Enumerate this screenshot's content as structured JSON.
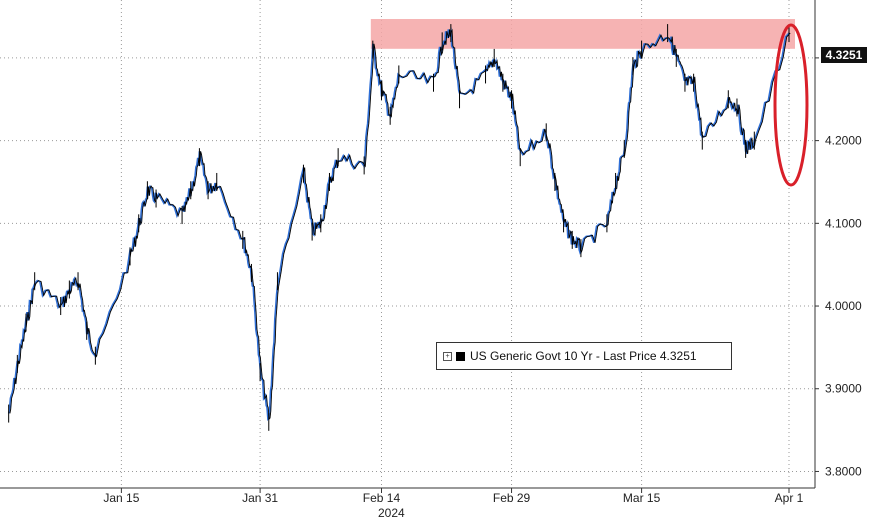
{
  "chart_data": {
    "type": "candlestick-line",
    "title": "",
    "xlabel": "",
    "ylabel": "",
    "ylim": [
      3.78,
      4.37
    ],
    "y_ticks": [
      "4.3000",
      "4.2000",
      "4.1000",
      "4.0000",
      "3.9000",
      "3.8000"
    ],
    "y_tick_values": [
      4.3,
      4.2,
      4.1,
      4.0,
      3.9,
      3.8
    ],
    "x_ticks": [
      "Jan 15",
      "Jan 31",
      "Feb 14",
      "Feb 29",
      "Mar 15",
      "Apr 1"
    ],
    "x_year_label": "2024",
    "last_price_label": "4.3251",
    "last_price": 4.3251,
    "grid": true,
    "legend_placement": "center-right",
    "series": [
      {
        "name": "US Generic Govt 10 Yr - Last Price 4.3251",
        "points": [
          [
            "2024-01-02",
            3.87
          ],
          [
            "2024-01-03",
            3.93
          ],
          [
            "2024-01-04",
            3.98
          ],
          [
            "2024-01-05",
            4.03
          ],
          [
            "2024-01-08",
            4.0
          ],
          [
            "2024-01-09",
            4.02
          ],
          [
            "2024-01-10",
            4.03
          ],
          [
            "2024-01-11",
            3.97
          ],
          [
            "2024-01-12",
            3.94
          ],
          [
            "2024-01-16",
            4.06
          ],
          [
            "2024-01-17",
            4.1
          ],
          [
            "2024-01-18",
            4.14
          ],
          [
            "2024-01-19",
            4.13
          ],
          [
            "2024-01-22",
            4.11
          ],
          [
            "2024-01-23",
            4.14
          ],
          [
            "2024-01-24",
            4.18
          ],
          [
            "2024-01-25",
            4.14
          ],
          [
            "2024-01-26",
            4.15
          ],
          [
            "2024-01-29",
            4.08
          ],
          [
            "2024-01-30",
            4.04
          ],
          [
            "2024-01-31",
            3.92
          ],
          [
            "2024-02-01",
            3.86
          ],
          [
            "2024-02-02",
            4.03
          ],
          [
            "2024-02-05",
            4.16
          ],
          [
            "2024-02-06",
            4.09
          ],
          [
            "2024-02-07",
            4.1
          ],
          [
            "2024-02-08",
            4.15
          ],
          [
            "2024-02-09",
            4.18
          ],
          [
            "2024-02-12",
            4.17
          ],
          [
            "2024-02-13",
            4.31
          ],
          [
            "2024-02-14",
            4.26
          ],
          [
            "2024-02-15",
            4.23
          ],
          [
            "2024-02-16",
            4.28
          ],
          [
            "2024-02-20",
            4.27
          ],
          [
            "2024-02-21",
            4.32
          ],
          [
            "2024-02-22",
            4.33
          ],
          [
            "2024-02-23",
            4.25
          ],
          [
            "2024-02-26",
            4.28
          ],
          [
            "2024-02-27",
            4.3
          ],
          [
            "2024-02-28",
            4.27
          ],
          [
            "2024-02-29",
            4.25
          ],
          [
            "2024-03-01",
            4.18
          ],
          [
            "2024-03-04",
            4.21
          ],
          [
            "2024-03-05",
            4.15
          ],
          [
            "2024-03-06",
            4.1
          ],
          [
            "2024-03-07",
            4.08
          ],
          [
            "2024-03-08",
            4.07
          ],
          [
            "2024-03-11",
            4.1
          ],
          [
            "2024-03-12",
            4.15
          ],
          [
            "2024-03-13",
            4.19
          ],
          [
            "2024-03-14",
            4.29
          ],
          [
            "2024-03-15",
            4.31
          ],
          [
            "2024-03-18",
            4.33
          ],
          [
            "2024-03-19",
            4.3
          ],
          [
            "2024-03-20",
            4.27
          ],
          [
            "2024-03-21",
            4.27
          ],
          [
            "2024-03-22",
            4.2
          ],
          [
            "2024-03-25",
            4.25
          ],
          [
            "2024-03-26",
            4.24
          ],
          [
            "2024-03-27",
            4.19
          ],
          [
            "2024-03-28",
            4.2
          ],
          [
            "2024-04-01",
            4.33
          ]
        ]
      }
    ],
    "highlights": [
      {
        "type": "band",
        "y_range": [
          4.311,
          4.347
        ],
        "color": "#f4a6a6"
      },
      {
        "type": "ellipse",
        "around": "2024-04-01",
        "color": "#d9202a"
      }
    ],
    "colors": {
      "line": "#000000",
      "accent_line": "#2f6fd6"
    }
  }
}
